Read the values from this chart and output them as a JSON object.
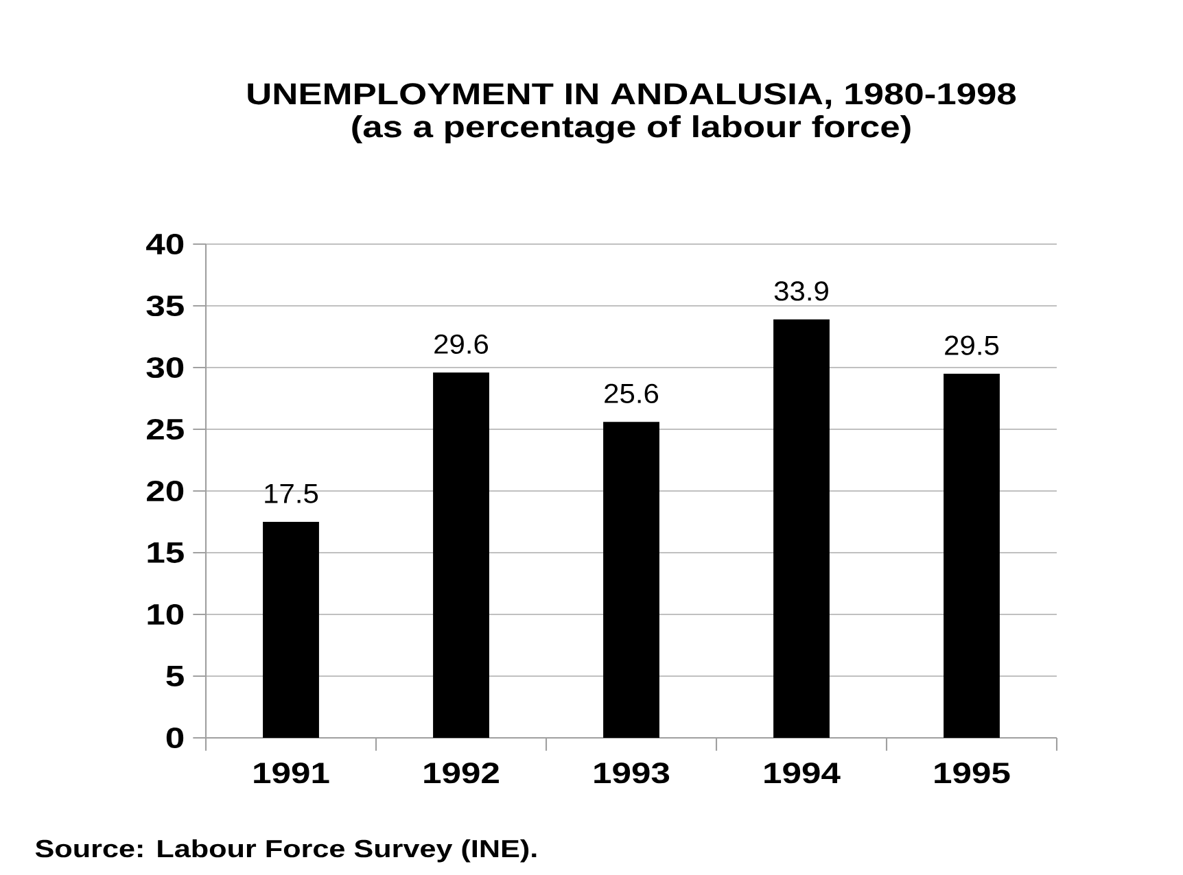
{
  "chart_data": {
    "type": "bar",
    "title": "UNEMPLOYMENT IN ANDALUSIA, 1980-1998",
    "subtitle": "(as a percentage of labour force)",
    "categories": [
      "1991",
      "1992",
      "1993",
      "1994",
      "1995"
    ],
    "values": [
      17.5,
      29.6,
      25.6,
      33.9,
      29.5
    ],
    "color": "#000000",
    "ylim": [
      0,
      40
    ],
    "yticks": [
      0,
      5,
      10,
      15,
      20,
      25,
      30,
      35,
      40
    ],
    "grid": "y",
    "data_labels": true,
    "annotations": [
      "Source: Labour Force Survey (INE)."
    ]
  }
}
